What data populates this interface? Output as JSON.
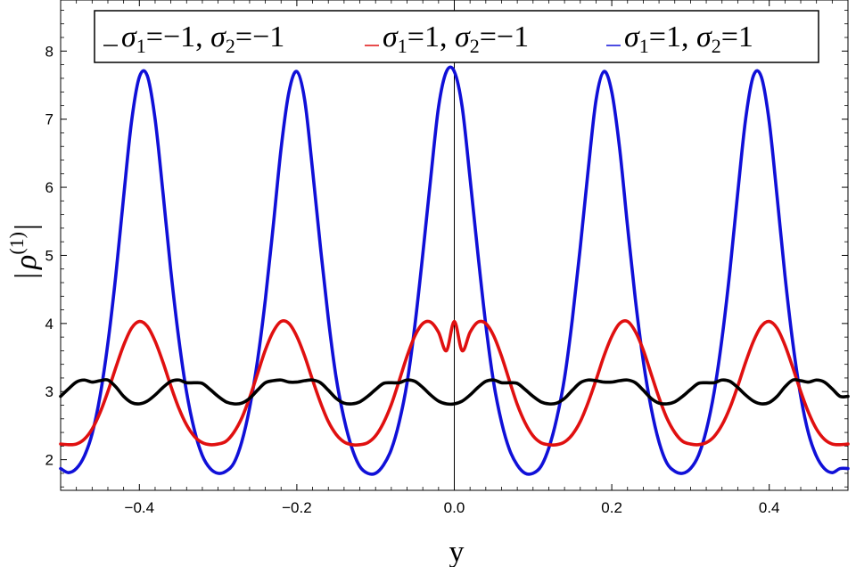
{
  "chart_data": {
    "type": "line",
    "title": "",
    "xlabel": "y",
    "ylabel_parts": {
      "pre": "|",
      "rho": "ρ",
      "sup": "(1)",
      "post": "|"
    },
    "xlim": [
      -0.5,
      0.5
    ],
    "ylim": [
      1.55,
      8.75
    ],
    "x_ticks": [
      -0.4,
      -0.2,
      0.0,
      0.2,
      0.4
    ],
    "x_tick_labels": [
      "−0.4",
      "−0.2",
      "0.0",
      "0.2",
      "0.4"
    ],
    "y_ticks": [
      2,
      3,
      4,
      5,
      6,
      7,
      8
    ],
    "y_tick_labels": [
      "2",
      "3",
      "4",
      "5",
      "6",
      "7",
      "8"
    ],
    "grid": false,
    "legend_position": "top",
    "series": [
      {
        "name": "σ1=−1, σ2=−1",
        "label": {
          "s1": "1",
          "v1": "=−1, ",
          "s2": "2",
          "v2": "=−1"
        },
        "color": "#000000",
        "x": [
          -0.5,
          -0.49,
          -0.48,
          -0.47,
          -0.46,
          -0.45,
          -0.44,
          -0.43,
          -0.42,
          -0.41,
          -0.4,
          -0.39,
          -0.38,
          -0.37,
          -0.36,
          -0.35,
          -0.34,
          -0.33,
          -0.32,
          -0.31,
          -0.3,
          -0.29,
          -0.28,
          -0.27,
          -0.26,
          -0.25,
          -0.24,
          -0.23,
          -0.22,
          -0.21,
          -0.2,
          -0.19,
          -0.18,
          -0.17,
          -0.16,
          -0.15,
          -0.14,
          -0.13,
          -0.12,
          -0.11,
          -0.1,
          -0.09,
          -0.08,
          -0.07,
          -0.06,
          -0.05,
          -0.04,
          -0.03,
          -0.02,
          -0.01,
          0.0,
          0.01,
          0.02,
          0.03,
          0.04,
          0.05,
          0.06,
          0.07,
          0.08,
          0.09,
          0.1,
          0.11,
          0.12,
          0.13,
          0.14,
          0.15,
          0.16,
          0.17,
          0.18,
          0.19,
          0.2,
          0.21,
          0.22,
          0.23,
          0.24,
          0.25,
          0.26,
          0.27,
          0.28,
          0.29,
          0.3,
          0.31,
          0.32,
          0.33,
          0.34,
          0.35,
          0.36,
          0.37,
          0.38,
          0.39,
          0.4,
          0.41,
          0.42,
          0.43,
          0.44,
          0.45,
          0.46,
          0.47,
          0.48,
          0.49,
          0.5
        ],
        "y": [
          2.93,
          3.04,
          3.14,
          3.17,
          3.14,
          3.16,
          3.17,
          3.07,
          2.93,
          2.84,
          2.82,
          2.86,
          2.95,
          3.06,
          3.15,
          3.17,
          3.13,
          3.13,
          3.12,
          3.03,
          2.93,
          2.85,
          2.82,
          2.83,
          2.9,
          3.02,
          3.13,
          3.16,
          3.17,
          3.14,
          3.14,
          3.16,
          3.17,
          3.13,
          3.02,
          2.9,
          2.83,
          2.82,
          2.85,
          2.93,
          3.03,
          3.12,
          3.13,
          3.13,
          3.17,
          3.15,
          3.06,
          2.95,
          2.86,
          2.82,
          2.82,
          2.86,
          2.95,
          3.06,
          3.15,
          3.17,
          3.13,
          3.13,
          3.12,
          3.03,
          2.93,
          2.85,
          2.82,
          2.83,
          2.9,
          3.02,
          3.13,
          3.17,
          3.16,
          3.14,
          3.14,
          3.16,
          3.17,
          3.13,
          3.02,
          2.9,
          2.83,
          2.82,
          2.85,
          2.93,
          3.03,
          3.12,
          3.13,
          3.13,
          3.17,
          3.15,
          3.06,
          2.95,
          2.86,
          2.82,
          2.84,
          2.93,
          3.07,
          3.17,
          3.16,
          3.14,
          3.17,
          3.14,
          3.04,
          2.93,
          2.93
        ]
      },
      {
        "name": "σ1=1, σ2=−1",
        "label": {
          "s1": "1",
          "v1": "=1, ",
          "s2": "2",
          "v2": "=−1"
        },
        "color": "#e01010",
        "x": [
          -0.5,
          -0.49,
          -0.48,
          -0.47,
          -0.46,
          -0.45,
          -0.44,
          -0.43,
          -0.42,
          -0.41,
          -0.4,
          -0.39,
          -0.38,
          -0.37,
          -0.36,
          -0.35,
          -0.34,
          -0.33,
          -0.32,
          -0.31,
          -0.3,
          -0.29,
          -0.28,
          -0.27,
          -0.26,
          -0.25,
          -0.24,
          -0.23,
          -0.22,
          -0.21,
          -0.2,
          -0.19,
          -0.18,
          -0.17,
          -0.16,
          -0.15,
          -0.14,
          -0.13,
          -0.12,
          -0.11,
          -0.1,
          -0.09,
          -0.08,
          -0.07,
          -0.06,
          -0.05,
          -0.04,
          -0.03,
          -0.02,
          -0.01,
          0.0,
          0.01,
          0.02,
          0.03,
          0.04,
          0.05,
          0.06,
          0.07,
          0.08,
          0.09,
          0.1,
          0.11,
          0.12,
          0.13,
          0.14,
          0.15,
          0.16,
          0.17,
          0.18,
          0.19,
          0.2,
          0.21,
          0.22,
          0.23,
          0.24,
          0.25,
          0.26,
          0.27,
          0.28,
          0.29,
          0.3,
          0.31,
          0.32,
          0.33,
          0.34,
          0.35,
          0.36,
          0.37,
          0.38,
          0.39,
          0.4,
          0.41,
          0.42,
          0.43,
          0.44,
          0.45,
          0.46,
          0.47,
          0.48,
          0.49,
          0.5
        ],
        "y": [
          2.23,
          2.22,
          2.23,
          2.3,
          2.45,
          2.69,
          3.0,
          3.35,
          3.68,
          3.93,
          4.03,
          3.96,
          3.74,
          3.43,
          3.08,
          2.76,
          2.51,
          2.34,
          2.25,
          2.22,
          2.23,
          2.27,
          2.4,
          2.61,
          2.91,
          3.26,
          3.61,
          3.88,
          4.03,
          4.0,
          3.81,
          3.52,
          3.17,
          2.84,
          2.56,
          2.37,
          2.26,
          2.22,
          2.22,
          2.25,
          2.35,
          2.54,
          2.81,
          3.16,
          3.52,
          3.82,
          4.0,
          4.02,
          3.87,
          3.6,
          4.03,
          3.6,
          3.87,
          4.02,
          4.0,
          3.82,
          3.52,
          3.16,
          2.81,
          2.54,
          2.35,
          2.25,
          2.22,
          2.22,
          2.26,
          2.37,
          2.56,
          2.84,
          3.17,
          3.52,
          3.81,
          4.0,
          4.03,
          3.88,
          3.61,
          3.26,
          2.91,
          2.61,
          2.4,
          2.27,
          2.23,
          2.22,
          2.25,
          2.34,
          2.51,
          2.76,
          3.08,
          3.43,
          3.74,
          3.96,
          4.03,
          3.93,
          3.68,
          3.35,
          3.0,
          2.69,
          2.45,
          2.3,
          2.23,
          2.22,
          2.23
        ]
      },
      {
        "name": "σ1=1, σ2=1",
        "label": {
          "s1": "1",
          "v1": "=1, ",
          "s2": "2",
          "v2": "=1"
        },
        "color": "#1010d8",
        "x": [
          -0.5,
          -0.49,
          -0.48,
          -0.47,
          -0.46,
          -0.45,
          -0.44,
          -0.43,
          -0.42,
          -0.41,
          -0.4,
          -0.39,
          -0.38,
          -0.37,
          -0.36,
          -0.35,
          -0.34,
          -0.33,
          -0.32,
          -0.31,
          -0.3,
          -0.29,
          -0.28,
          -0.27,
          -0.26,
          -0.25,
          -0.24,
          -0.23,
          -0.22,
          -0.21,
          -0.2,
          -0.19,
          -0.18,
          -0.17,
          -0.16,
          -0.15,
          -0.14,
          -0.13,
          -0.12,
          -0.11,
          -0.1,
          -0.09,
          -0.08,
          -0.07,
          -0.06,
          -0.05,
          -0.04,
          -0.03,
          -0.02,
          -0.01,
          0.0,
          0.01,
          0.02,
          0.03,
          0.04,
          0.05,
          0.06,
          0.07,
          0.08,
          0.09,
          0.1,
          0.11,
          0.12,
          0.13,
          0.14,
          0.15,
          0.16,
          0.17,
          0.18,
          0.19,
          0.2,
          0.21,
          0.22,
          0.23,
          0.24,
          0.25,
          0.26,
          0.27,
          0.28,
          0.29,
          0.3,
          0.31,
          0.32,
          0.33,
          0.34,
          0.35,
          0.36,
          0.37,
          0.38,
          0.39,
          0.4,
          0.41,
          0.42,
          0.43,
          0.44,
          0.45,
          0.46,
          0.47,
          0.48,
          0.49,
          0.5
        ],
        "y": [
          1.87,
          1.81,
          1.87,
          2.05,
          2.38,
          2.93,
          3.71,
          4.7,
          5.86,
          6.96,
          7.62,
          7.64,
          7.0,
          5.92,
          4.77,
          3.78,
          2.99,
          2.43,
          2.06,
          1.87,
          1.8,
          1.83,
          1.95,
          2.26,
          2.76,
          3.45,
          4.35,
          5.43,
          6.57,
          7.4,
          7.7,
          7.28,
          6.25,
          5.12,
          4.07,
          3.2,
          2.6,
          2.17,
          1.9,
          1.8,
          1.8,
          1.92,
          2.15,
          2.55,
          3.13,
          3.98,
          5.02,
          6.13,
          7.18,
          7.7,
          7.7,
          7.18,
          6.13,
          5.02,
          3.98,
          3.13,
          2.55,
          2.15,
          1.92,
          1.8,
          1.8,
          1.9,
          2.17,
          2.6,
          3.2,
          4.07,
          5.12,
          6.25,
          7.28,
          7.7,
          7.4,
          6.57,
          5.43,
          4.35,
          3.45,
          2.76,
          2.26,
          1.95,
          1.83,
          1.8,
          1.87,
          2.06,
          2.43,
          2.99,
          3.78,
          4.77,
          5.92,
          7.0,
          7.64,
          7.62,
          6.96,
          5.86,
          4.7,
          3.71,
          2.93,
          2.38,
          2.05,
          1.87,
          1.81,
          1.87,
          1.87
        ]
      }
    ]
  }
}
